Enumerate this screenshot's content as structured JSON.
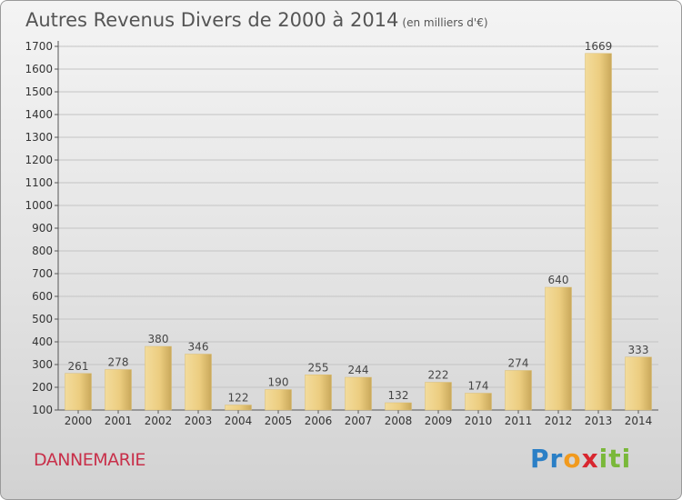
{
  "chart_data": {
    "type": "bar",
    "title": "Autres Revenus Divers de 2000 à 2014",
    "subtitle": "(en milliers d'€)",
    "categories": [
      "2000",
      "2001",
      "2002",
      "2003",
      "2004",
      "2005",
      "2006",
      "2007",
      "2008",
      "2009",
      "2010",
      "2011",
      "2012",
      "2013",
      "2014"
    ],
    "values": [
      261,
      278,
      380,
      346,
      122,
      190,
      255,
      244,
      132,
      222,
      174,
      274,
      640,
      1669,
      333
    ],
    "ylim": [
      100,
      1700
    ],
    "yticks": [
      100,
      200,
      300,
      400,
      500,
      600,
      700,
      800,
      900,
      1000,
      1100,
      1200,
      1300,
      1400,
      1500,
      1600,
      1700
    ],
    "grid": true,
    "bar_color": "#e8c97a"
  },
  "footer": {
    "place": "DANNEMARIE",
    "logo_letters": [
      "P",
      "r",
      "o",
      "x",
      "i",
      "t",
      "i"
    ],
    "logo_colors": [
      "#2a7fc6",
      "#2a7fc6",
      "#f19a1e",
      "#d8262f",
      "#7ab83a",
      "#7ab83a",
      "#7ab83a"
    ]
  }
}
